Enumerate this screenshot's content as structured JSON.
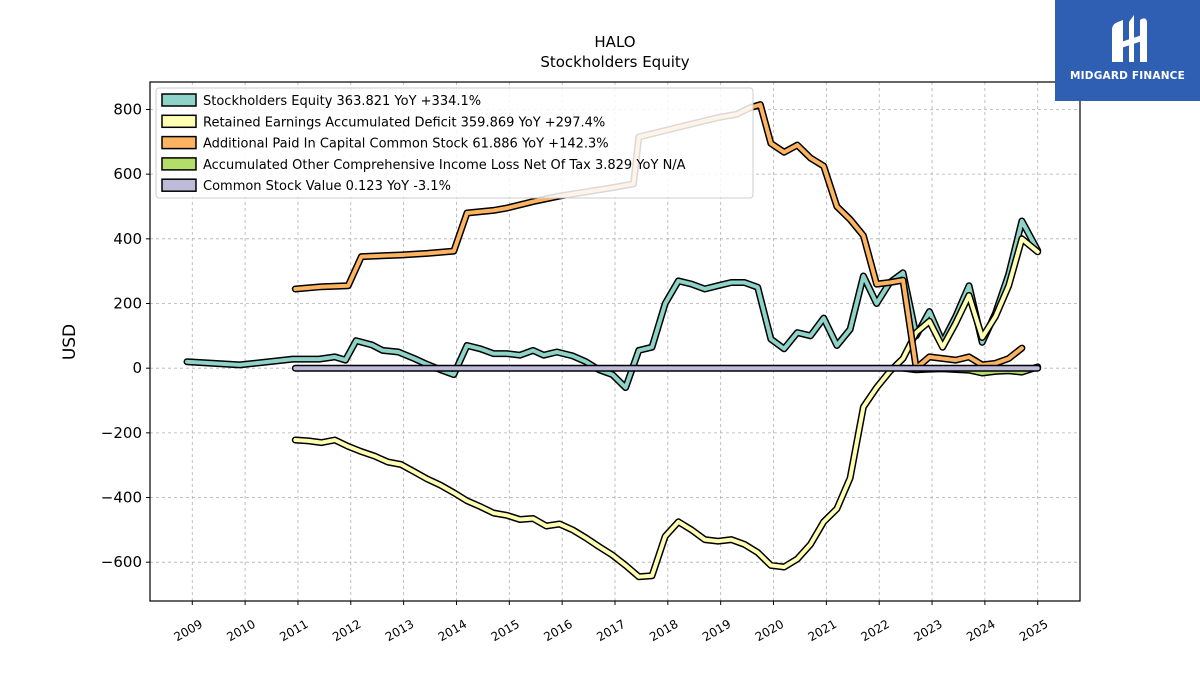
{
  "chart_data": {
    "type": "line",
    "title": "HALO",
    "subtitle": "Stockholders  Equity",
    "ylabel": "USD",
    "xlabel": "",
    "ylim": [
      -720,
      885
    ],
    "xlim": [
      2008.2,
      2025.8
    ],
    "yticks": [
      -600,
      -400,
      -200,
      0,
      200,
      400,
      600,
      800
    ],
    "ytick_labels": [
      "−600",
      "−400",
      "−200",
      "0",
      "200",
      "400",
      "600",
      "800"
    ],
    "xticks": [
      2009,
      2010,
      2011,
      2012,
      2013,
      2014,
      2015,
      2016,
      2017,
      2018,
      2019,
      2020,
      2021,
      2022,
      2023,
      2024,
      2025
    ],
    "xtick_labels": [
      "2009",
      "2010",
      "2011",
      "2012",
      "2013",
      "2014",
      "2015",
      "2016",
      "2017",
      "2018",
      "2019",
      "2020",
      "2021",
      "2022",
      "2023",
      "2024",
      "2025"
    ],
    "grid": true,
    "legend_position": "top-left",
    "series": [
      {
        "name": "Stockholders Equity  363.821 YoY +334.1%",
        "color": "#8dd3c7",
        "points": [
          [
            2008.9,
            20
          ],
          [
            2009.9,
            10
          ],
          [
            2010.9,
            28
          ],
          [
            2011.4,
            28
          ],
          [
            2011.7,
            35
          ],
          [
            2011.9,
            25
          ],
          [
            2012.1,
            85
          ],
          [
            2012.4,
            72
          ],
          [
            2012.6,
            55
          ],
          [
            2012.9,
            50
          ],
          [
            2013.2,
            30
          ],
          [
            2013.4,
            15
          ],
          [
            2013.7,
            -5
          ],
          [
            2013.95,
            -20
          ],
          [
            2014.2,
            70
          ],
          [
            2014.45,
            60
          ],
          [
            2014.7,
            45
          ],
          [
            2014.95,
            45
          ],
          [
            2015.2,
            40
          ],
          [
            2015.45,
            55
          ],
          [
            2015.65,
            40
          ],
          [
            2015.9,
            50
          ],
          [
            2016.2,
            38
          ],
          [
            2016.45,
            20
          ],
          [
            2016.7,
            -5
          ],
          [
            2016.95,
            -20
          ],
          [
            2017.2,
            -60
          ],
          [
            2017.45,
            55
          ],
          [
            2017.7,
            65
          ],
          [
            2017.95,
            200
          ],
          [
            2018.2,
            270
          ],
          [
            2018.45,
            260
          ],
          [
            2018.7,
            245
          ],
          [
            2018.95,
            255
          ],
          [
            2019.2,
            265
          ],
          [
            2019.45,
            265
          ],
          [
            2019.7,
            250
          ],
          [
            2019.95,
            90
          ],
          [
            2020.2,
            60
          ],
          [
            2020.45,
            110
          ],
          [
            2020.7,
            100
          ],
          [
            2020.95,
            155
          ],
          [
            2021.2,
            70
          ],
          [
            2021.45,
            120
          ],
          [
            2021.7,
            285
          ],
          [
            2021.95,
            200
          ],
          [
            2022.2,
            265
          ],
          [
            2022.45,
            295
          ],
          [
            2022.7,
            100
          ],
          [
            2022.95,
            175
          ],
          [
            2023.2,
            80
          ],
          [
            2023.45,
            160
          ],
          [
            2023.7,
            255
          ],
          [
            2023.95,
            80
          ],
          [
            2024.2,
            170
          ],
          [
            2024.45,
            290
          ],
          [
            2024.7,
            455
          ],
          [
            2025.0,
            364
          ]
        ]
      },
      {
        "name": "Retained Earnings Accumulated Deficit  359.869 YoY +297.4%",
        "color": "#ffffb3",
        "points": [
          [
            2010.95,
            -222
          ],
          [
            2011.2,
            -225
          ],
          [
            2011.45,
            -230
          ],
          [
            2011.7,
            -222
          ],
          [
            2011.95,
            -242
          ],
          [
            2012.2,
            -258
          ],
          [
            2012.45,
            -272
          ],
          [
            2012.7,
            -290
          ],
          [
            2012.95,
            -298
          ],
          [
            2013.2,
            -320
          ],
          [
            2013.45,
            -343
          ],
          [
            2013.7,
            -362
          ],
          [
            2013.95,
            -385
          ],
          [
            2014.2,
            -410
          ],
          [
            2014.45,
            -428
          ],
          [
            2014.7,
            -448
          ],
          [
            2014.95,
            -455
          ],
          [
            2015.2,
            -468
          ],
          [
            2015.45,
            -465
          ],
          [
            2015.7,
            -488
          ],
          [
            2015.95,
            -482
          ],
          [
            2016.2,
            -500
          ],
          [
            2016.45,
            -525
          ],
          [
            2016.7,
            -552
          ],
          [
            2016.95,
            -578
          ],
          [
            2017.2,
            -610
          ],
          [
            2017.45,
            -645
          ],
          [
            2017.7,
            -642
          ],
          [
            2017.95,
            -520
          ],
          [
            2018.2,
            -475
          ],
          [
            2018.45,
            -500
          ],
          [
            2018.7,
            -530
          ],
          [
            2018.95,
            -535
          ],
          [
            2019.2,
            -530
          ],
          [
            2019.45,
            -545
          ],
          [
            2019.7,
            -570
          ],
          [
            2019.95,
            -610
          ],
          [
            2020.2,
            -615
          ],
          [
            2020.45,
            -590
          ],
          [
            2020.7,
            -545
          ],
          [
            2020.95,
            -475
          ],
          [
            2021.2,
            -435
          ],
          [
            2021.45,
            -340
          ],
          [
            2021.7,
            -120
          ],
          [
            2021.95,
            -60
          ],
          [
            2022.2,
            -10
          ],
          [
            2022.45,
            30
          ],
          [
            2022.7,
            110
          ],
          [
            2022.95,
            145
          ],
          [
            2023.2,
            65
          ],
          [
            2023.45,
            140
          ],
          [
            2023.7,
            225
          ],
          [
            2023.95,
            95
          ],
          [
            2024.2,
            160
          ],
          [
            2024.45,
            255
          ],
          [
            2024.7,
            400
          ],
          [
            2025.0,
            360
          ]
        ]
      },
      {
        "name": "Additional Paid In Capital Common Stock  61.886 YoY +142.3%",
        "color": "#fdb462",
        "points": [
          [
            2010.95,
            245
          ],
          [
            2011.45,
            252
          ],
          [
            2011.95,
            255
          ],
          [
            2012.2,
            345
          ],
          [
            2012.95,
            350
          ],
          [
            2013.45,
            355
          ],
          [
            2013.95,
            362
          ],
          [
            2014.2,
            480
          ],
          [
            2014.7,
            488
          ],
          [
            2014.95,
            495
          ],
          [
            2015.45,
            515
          ],
          [
            2015.95,
            532
          ],
          [
            2016.45,
            545
          ],
          [
            2016.95,
            558
          ],
          [
            2017.35,
            570
          ],
          [
            2017.45,
            715
          ],
          [
            2017.95,
            735
          ],
          [
            2018.45,
            755
          ],
          [
            2018.95,
            775
          ],
          [
            2019.3,
            785
          ],
          [
            2019.55,
            805
          ],
          [
            2019.75,
            815
          ],
          [
            2019.95,
            695
          ],
          [
            2020.2,
            668
          ],
          [
            2020.45,
            690
          ],
          [
            2020.7,
            650
          ],
          [
            2020.95,
            625
          ],
          [
            2021.2,
            500
          ],
          [
            2021.45,
            460
          ],
          [
            2021.7,
            410
          ],
          [
            2021.95,
            260
          ],
          [
            2022.2,
            265
          ],
          [
            2022.45,
            272
          ],
          [
            2022.7,
            0
          ],
          [
            2022.95,
            35
          ],
          [
            2023.2,
            30
          ],
          [
            2023.45,
            25
          ],
          [
            2023.7,
            35
          ],
          [
            2023.95,
            10
          ],
          [
            2024.2,
            15
          ],
          [
            2024.45,
            30
          ],
          [
            2024.7,
            62
          ]
        ]
      },
      {
        "name": "Accumulated Other Comprehensive Income Loss Net Of Tax  3.829 YoY N/A",
        "color": "#b3de69",
        "points": [
          [
            2022.45,
            0
          ],
          [
            2022.7,
            -5
          ],
          [
            2022.95,
            -3
          ],
          [
            2023.2,
            -2
          ],
          [
            2023.45,
            -4
          ],
          [
            2023.7,
            -6
          ],
          [
            2023.95,
            -15
          ],
          [
            2024.2,
            -10
          ],
          [
            2024.45,
            -8
          ],
          [
            2024.7,
            -12
          ],
          [
            2025.0,
            4
          ]
        ]
      },
      {
        "name": "Common Stock Value  0.123 YoY -3.1%",
        "color": "#bebada",
        "points": [
          [
            2010.95,
            0
          ],
          [
            2025.0,
            0
          ]
        ]
      }
    ]
  },
  "logo": {
    "brand": "MIDGARD FINANCE"
  }
}
